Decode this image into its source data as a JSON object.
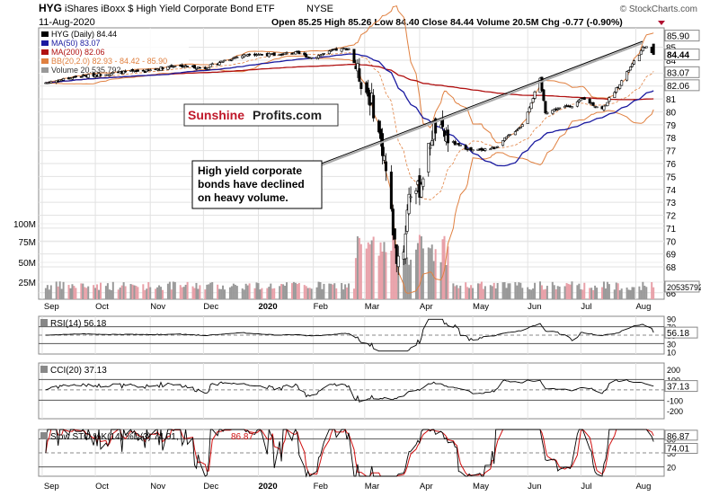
{
  "header": {
    "symbol": "HYG",
    "name": "iShares iBoxx $ High Yield Corporate Bond ETF",
    "exchange": "NYSE",
    "date": "11-Aug-2020",
    "watermark": "© StockCharts.com",
    "quote": "Open 85.25  High 85.26  Low 84.40  Close 84.44  Volume 20.5M  Chg -0.77 (-0.90%)"
  },
  "legend": [
    {
      "text": "HYG (Daily) 84.44",
      "color": "#000000",
      "icon": "candle-icon"
    },
    {
      "text": "MA(50) 83.07",
      "color": "#1a1aa0",
      "icon": "line-icon"
    },
    {
      "text": "MA(200) 82.06",
      "color": "#b01010",
      "icon": "line-icon"
    },
    {
      "text": "BB(20,2.0) 82.93 - 84.42 - 85.90",
      "color": "#e08040",
      "icon": "band-icon"
    },
    {
      "text": "Volume 20,535,792",
      "color": "#999999",
      "icon": "volume-icon"
    }
  ],
  "logo": {
    "part1": "Sunshine",
    "part2": "Profits.com"
  },
  "annotation": {
    "lines": [
      "High yield corporate",
      "bonds have declined",
      "on heavy volume."
    ]
  },
  "price_axis": {
    "ticks": [
      "66",
      "68",
      "69",
      "70",
      "71",
      "72",
      "73",
      "74",
      "75",
      "76",
      "77",
      "78",
      "79",
      "80",
      "81",
      "82",
      "83",
      "84",
      "85"
    ],
    "tags": [
      "85.90",
      "84.44",
      "83.07",
      "82.06",
      "20535792"
    ]
  },
  "volume_axis": {
    "ticks": [
      "100M",
      "75M",
      "50M",
      "25M"
    ]
  },
  "x_axis": {
    "labels": [
      "Sep",
      "Oct",
      "Nov",
      "Dec",
      "2020",
      "Feb",
      "Mar",
      "Apr",
      "May",
      "Jun",
      "Jul",
      "Aug"
    ]
  },
  "colors": {
    "up": "#ffffff",
    "down": "#000000",
    "vol_up": "#999999",
    "vol_down": "#e8a0a8",
    "rsi_fill": "#4e7a3e",
    "cci_fill_neg": "#8a5050",
    "ma50": "#1a1aa0",
    "ma200": "#b01010",
    "bb": "#e08040",
    "sto_d": "#d01010"
  },
  "panels": {
    "rsi": {
      "label": "RSI(14) 56.18",
      "ticks": [
        "90",
        "70",
        "50",
        "30",
        "10"
      ],
      "tag": "56.18",
      "levels": [
        70,
        30
      ]
    },
    "cci": {
      "label": "CCI(20) 37.13",
      "ticks": [
        "200",
        "100",
        "-100",
        "-200"
      ],
      "tag": "37.13",
      "levels": [
        100,
        -100
      ]
    },
    "sto": {
      "label_k": "Slow STO %K(14) %D(3) 74.01,",
      "label_d": "86.87",
      "ticks": [
        "80",
        "50",
        "20"
      ],
      "tags": [
        "86.87",
        "74.01"
      ],
      "levels": [
        80,
        20
      ]
    }
  },
  "chart_data": {
    "type": "candlestick",
    "title": "HYG iShares iBoxx $ High Yield Corporate Bond ETF NYSE",
    "x_range": [
      "2019-09",
      "2020-08-11"
    ],
    "ylim": [
      65.5,
      86.5
    ],
    "x_month_labels": [
      "Sep",
      "Oct",
      "Nov",
      "Dec",
      "2020",
      "Feb",
      "Mar",
      "Apr",
      "May",
      "Jun",
      "Jul",
      "Aug"
    ],
    "price_anchors": [
      [
        "2019-09-01",
        82.2
      ],
      [
        "2019-09-20",
        82.7
      ],
      [
        "2019-10-10",
        83.0
      ],
      [
        "2019-10-31",
        83.2
      ],
      [
        "2019-11-15",
        83.6
      ],
      [
        "2019-12-02",
        83.4
      ],
      [
        "2019-12-13",
        84.0
      ],
      [
        "2019-12-27",
        84.5
      ],
      [
        "2020-01-10",
        84.4
      ],
      [
        "2020-01-21",
        84.6
      ],
      [
        "2020-01-31",
        84.2
      ],
      [
        "2020-02-14",
        84.8
      ],
      [
        "2020-02-21",
        84.9
      ],
      [
        "2020-02-28",
        82.4
      ],
      [
        "2020-03-05",
        80.8
      ],
      [
        "2020-03-12",
        76.5
      ],
      [
        "2020-03-19",
        68.7
      ],
      [
        "2020-03-23",
        69.4
      ],
      [
        "2020-03-26",
        73.8
      ],
      [
        "2020-04-01",
        74.0
      ],
      [
        "2020-04-09",
        78.8
      ],
      [
        "2020-04-21",
        77.5
      ],
      [
        "2020-05-01",
        77.0
      ],
      [
        "2020-05-13",
        77.2
      ],
      [
        "2020-05-29",
        79.0
      ],
      [
        "2020-06-08",
        82.5
      ],
      [
        "2020-06-11",
        80.0
      ],
      [
        "2020-06-26",
        80.5
      ],
      [
        "2020-07-02",
        81.0
      ],
      [
        "2020-07-13",
        80.2
      ],
      [
        "2020-07-24",
        82.4
      ],
      [
        "2020-08-06",
        85.1
      ],
      [
        "2020-08-11",
        84.44
      ]
    ],
    "volume_range_millions": [
      10,
      95
    ],
    "last": {
      "open": 85.25,
      "high": 85.26,
      "low": 84.4,
      "close": 84.44,
      "volume": 20535792,
      "ma50": 83.07,
      "ma200": 82.06,
      "bb_lower": 82.93,
      "bb_mid": 84.42,
      "bb_upper": 85.9,
      "rsi": 56.18,
      "cci": 37.13,
      "sto_k": 74.01,
      "sto_d": 86.87
    }
  }
}
